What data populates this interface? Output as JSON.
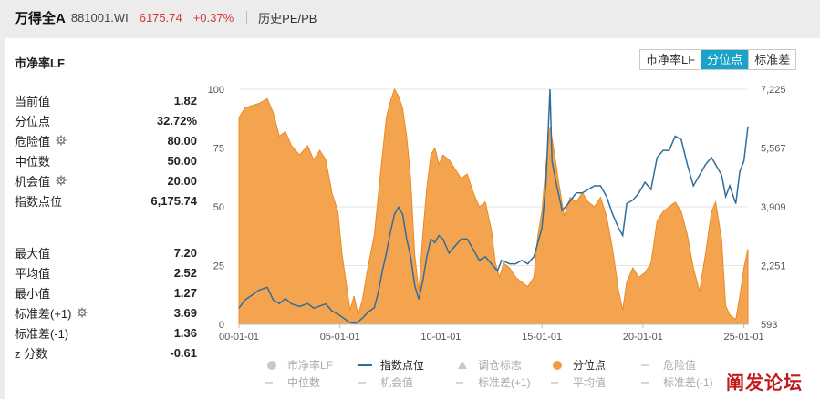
{
  "header": {
    "index_name": "万得全A",
    "index_code": "881001.WI",
    "price": "6175.74",
    "change": "+0.37%",
    "history_link": "历史PE/PB"
  },
  "panel": {
    "title": "市净率LF",
    "tabs": [
      {
        "label": "市净率LF",
        "active": false
      },
      {
        "label": "分位点",
        "active": true
      },
      {
        "label": "标准差",
        "active": false
      }
    ]
  },
  "stats_group1": [
    {
      "label": "当前值",
      "value": "1.82",
      "gear": false
    },
    {
      "label": "分位点",
      "value": "32.72%",
      "gear": false
    },
    {
      "label": "危险值",
      "value": "80.00",
      "gear": true
    },
    {
      "label": "中位数",
      "value": "50.00",
      "gear": false
    },
    {
      "label": "机会值",
      "value": "20.00",
      "gear": true
    },
    {
      "label": "指数点位",
      "value": "6,175.74",
      "gear": false
    }
  ],
  "stats_group2": [
    {
      "label": "最大值",
      "value": "7.20",
      "gear": false
    },
    {
      "label": "平均值",
      "value": "2.52",
      "gear": false
    },
    {
      "label": "最小值",
      "value": "1.27",
      "gear": false
    },
    {
      "label": "标准差(+1)",
      "value": "3.69",
      "gear": true
    },
    {
      "label": "标准差(-1)",
      "value": "1.36",
      "gear": false
    },
    {
      "label": "z 分数",
      "value": "-0.61",
      "gear": false
    }
  ],
  "colors": {
    "accent": "#1aa3c9",
    "percentile_fill": "#f39c3f",
    "index_line": "#2f6e9c",
    "up_red": "#d03a3a"
  },
  "chart_data": {
    "type": "area",
    "x_ticks": [
      "00-01-01",
      "05-01-01",
      "10-01-01",
      "15-01-01",
      "20-01-01",
      "25-01-01"
    ],
    "y_left_ticks": [
      "0",
      "25",
      "50",
      "75",
      "100"
    ],
    "y_left_range": [
      0,
      100
    ],
    "y_right_ticks": [
      "593",
      "2,251",
      "3,909",
      "5,567",
      "7,225"
    ],
    "y_right_range": [
      593,
      7225
    ],
    "x_range_years": [
      2000,
      2025.2
    ],
    "series": [
      {
        "name": "分位点",
        "axis": "left",
        "type": "area",
        "points": [
          [
            2000.0,
            88
          ],
          [
            2000.3,
            92
          ],
          [
            2000.6,
            93
          ],
          [
            2001.0,
            94
          ],
          [
            2001.4,
            96
          ],
          [
            2001.7,
            90
          ],
          [
            2002.0,
            80
          ],
          [
            2002.3,
            82
          ],
          [
            2002.6,
            76
          ],
          [
            2003.0,
            72
          ],
          [
            2003.4,
            76
          ],
          [
            2003.7,
            70
          ],
          [
            2004.0,
            74
          ],
          [
            2004.3,
            70
          ],
          [
            2004.6,
            56
          ],
          [
            2004.9,
            48
          ],
          [
            2005.1,
            30
          ],
          [
            2005.3,
            18
          ],
          [
            2005.5,
            6
          ],
          [
            2005.7,
            12
          ],
          [
            2005.9,
            4
          ],
          [
            2006.1,
            10
          ],
          [
            2006.4,
            25
          ],
          [
            2006.7,
            38
          ],
          [
            2006.9,
            55
          ],
          [
            2007.1,
            72
          ],
          [
            2007.3,
            88
          ],
          [
            2007.5,
            95
          ],
          [
            2007.7,
            100
          ],
          [
            2007.9,
            97
          ],
          [
            2008.1,
            92
          ],
          [
            2008.3,
            80
          ],
          [
            2008.5,
            62
          ],
          [
            2008.7,
            30
          ],
          [
            2008.9,
            14
          ],
          [
            2009.1,
            38
          ],
          [
            2009.3,
            58
          ],
          [
            2009.5,
            72
          ],
          [
            2009.7,
            75
          ],
          [
            2009.9,
            68
          ],
          [
            2010.1,
            72
          ],
          [
            2010.4,
            70
          ],
          [
            2010.7,
            66
          ],
          [
            2011.0,
            62
          ],
          [
            2011.3,
            64
          ],
          [
            2011.6,
            56
          ],
          [
            2011.9,
            50
          ],
          [
            2012.2,
            52
          ],
          [
            2012.5,
            40
          ],
          [
            2012.7,
            26
          ],
          [
            2012.9,
            20
          ],
          [
            2013.1,
            26
          ],
          [
            2013.4,
            24
          ],
          [
            2013.7,
            20
          ],
          [
            2014.0,
            18
          ],
          [
            2014.3,
            16
          ],
          [
            2014.6,
            20
          ],
          [
            2014.8,
            38
          ],
          [
            2015.0,
            48
          ],
          [
            2015.2,
            68
          ],
          [
            2015.4,
            84
          ],
          [
            2015.6,
            74
          ],
          [
            2015.8,
            62
          ],
          [
            2016.1,
            46
          ],
          [
            2016.4,
            54
          ],
          [
            2016.7,
            52
          ],
          [
            2017.0,
            56
          ],
          [
            2017.3,
            52
          ],
          [
            2017.6,
            50
          ],
          [
            2017.9,
            54
          ],
          [
            2018.2,
            46
          ],
          [
            2018.5,
            32
          ],
          [
            2018.8,
            14
          ],
          [
            2019.0,
            6
          ],
          [
            2019.2,
            18
          ],
          [
            2019.5,
            24
          ],
          [
            2019.8,
            20
          ],
          [
            2020.1,
            22
          ],
          [
            2020.4,
            26
          ],
          [
            2020.7,
            44
          ],
          [
            2021.0,
            48
          ],
          [
            2021.3,
            50
          ],
          [
            2021.6,
            52
          ],
          [
            2021.9,
            48
          ],
          [
            2022.2,
            38
          ],
          [
            2022.5,
            24
          ],
          [
            2022.8,
            14
          ],
          [
            2023.1,
            30
          ],
          [
            2023.4,
            48
          ],
          [
            2023.6,
            52
          ],
          [
            2023.9,
            36
          ],
          [
            2024.1,
            8
          ],
          [
            2024.3,
            4
          ],
          [
            2024.6,
            2
          ],
          [
            2024.8,
            12
          ],
          [
            2025.0,
            24
          ],
          [
            2025.2,
            32
          ]
        ]
      },
      {
        "name": "指数点位",
        "axis": "right",
        "type": "line",
        "points": [
          [
            2000.0,
            1050
          ],
          [
            2000.3,
            1280
          ],
          [
            2000.6,
            1400
          ],
          [
            2001.0,
            1560
          ],
          [
            2001.4,
            1640
          ],
          [
            2001.7,
            1280
          ],
          [
            2002.0,
            1180
          ],
          [
            2002.3,
            1320
          ],
          [
            2002.6,
            1170
          ],
          [
            2003.0,
            1100
          ],
          [
            2003.4,
            1180
          ],
          [
            2003.7,
            1050
          ],
          [
            2004.0,
            1110
          ],
          [
            2004.3,
            1170
          ],
          [
            2004.6,
            970
          ],
          [
            2004.9,
            880
          ],
          [
            2005.2,
            760
          ],
          [
            2005.5,
            640
          ],
          [
            2005.8,
            620
          ],
          [
            2006.1,
            760
          ],
          [
            2006.4,
            940
          ],
          [
            2006.7,
            1060
          ],
          [
            2006.9,
            1500
          ],
          [
            2007.1,
            2100
          ],
          [
            2007.3,
            2600
          ],
          [
            2007.5,
            3200
          ],
          [
            2007.7,
            3700
          ],
          [
            2007.9,
            3900
          ],
          [
            2008.1,
            3700
          ],
          [
            2008.3,
            3000
          ],
          [
            2008.5,
            2500
          ],
          [
            2008.7,
            1700
          ],
          [
            2008.9,
            1300
          ],
          [
            2009.1,
            1800
          ],
          [
            2009.3,
            2500
          ],
          [
            2009.5,
            3000
          ],
          [
            2009.7,
            2900
          ],
          [
            2009.9,
            3100
          ],
          [
            2010.1,
            3000
          ],
          [
            2010.4,
            2600
          ],
          [
            2010.7,
            2800
          ],
          [
            2011.0,
            3000
          ],
          [
            2011.3,
            3000
          ],
          [
            2011.6,
            2700
          ],
          [
            2011.9,
            2400
          ],
          [
            2012.2,
            2500
          ],
          [
            2012.5,
            2300
          ],
          [
            2012.8,
            2100
          ],
          [
            2013.0,
            2400
          ],
          [
            2013.4,
            2300
          ],
          [
            2013.7,
            2300
          ],
          [
            2014.0,
            2400
          ],
          [
            2014.3,
            2300
          ],
          [
            2014.6,
            2500
          ],
          [
            2014.8,
            2900
          ],
          [
            2015.0,
            3300
          ],
          [
            2015.2,
            4600
          ],
          [
            2015.4,
            7225
          ],
          [
            2015.5,
            5200
          ],
          [
            2015.7,
            4600
          ],
          [
            2016.0,
            3800
          ],
          [
            2016.3,
            4000
          ],
          [
            2016.7,
            4300
          ],
          [
            2017.0,
            4300
          ],
          [
            2017.3,
            4400
          ],
          [
            2017.6,
            4500
          ],
          [
            2017.9,
            4500
          ],
          [
            2018.2,
            4200
          ],
          [
            2018.5,
            3700
          ],
          [
            2018.8,
            3300
          ],
          [
            2019.0,
            3100
          ],
          [
            2019.2,
            4000
          ],
          [
            2019.5,
            4100
          ],
          [
            2019.8,
            4300
          ],
          [
            2020.1,
            4600
          ],
          [
            2020.4,
            4400
          ],
          [
            2020.7,
            5300
          ],
          [
            2021.0,
            5500
          ],
          [
            2021.3,
            5500
          ],
          [
            2021.6,
            5900
          ],
          [
            2021.9,
            5800
          ],
          [
            2022.2,
            5100
          ],
          [
            2022.5,
            4500
          ],
          [
            2022.8,
            4800
          ],
          [
            2023.1,
            5100
          ],
          [
            2023.4,
            5300
          ],
          [
            2023.6,
            5100
          ],
          [
            2023.9,
            4800
          ],
          [
            2024.1,
            4200
          ],
          [
            2024.3,
            4500
          ],
          [
            2024.6,
            4000
          ],
          [
            2024.8,
            4900
          ],
          [
            2025.0,
            5200
          ],
          [
            2025.2,
            6176
          ]
        ]
      }
    ],
    "legend_items": [
      {
        "label": "市净率LF",
        "style": "dot",
        "color": "#c8c8c8",
        "enabled": false
      },
      {
        "label": "指数点位",
        "style": "line",
        "color": "#2f6e9c",
        "enabled": true
      },
      {
        "label": "调仓标志",
        "style": "triangle",
        "color": "#c8c8c8",
        "enabled": false
      },
      {
        "label": "分位点",
        "style": "dot",
        "color": "#f39c3f",
        "enabled": true
      },
      {
        "label": "危险值",
        "style": "dash",
        "color": "#c8c8c8",
        "enabled": false
      },
      {
        "label": "中位数",
        "style": "dash",
        "color": "#c8c8c8",
        "enabled": false
      },
      {
        "label": "机会值",
        "style": "dash",
        "color": "#c8c8c8",
        "enabled": false
      },
      {
        "label": "标准差(+1)",
        "style": "dash",
        "color": "#c8c8c8",
        "enabled": false
      },
      {
        "label": "平均值",
        "style": "dash",
        "color": "#c8c8c8",
        "enabled": false
      },
      {
        "label": "标准差(-1)",
        "style": "dash",
        "color": "#c8c8c8",
        "enabled": false
      }
    ]
  },
  "watermark": "阐发论坛"
}
